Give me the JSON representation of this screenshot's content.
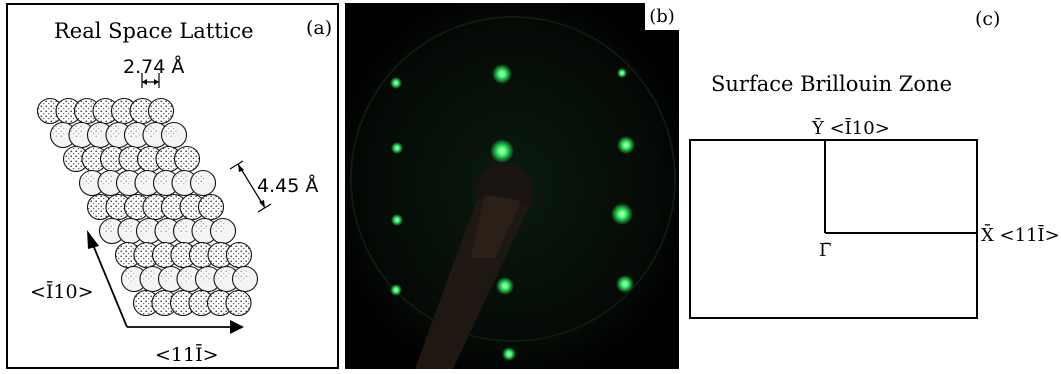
{
  "panel_a": {
    "label": "(a)",
    "title": "Real Space Lattice",
    "spacing_small": "2.74 Å",
    "spacing_large": "4.45 Å",
    "direction_vertical": "<Ī10>",
    "direction_horizontal": "<11Ī>"
  },
  "panel_b": {
    "label": "(b)",
    "spot_color": "#33ff66"
  },
  "panel_c": {
    "label": "(c)",
    "title": "Surface Brillouin Zone",
    "point_y": "Ȳ <Ī10>",
    "point_x": "X̄ <11Ī>",
    "point_gamma": "Γ̄"
  }
}
